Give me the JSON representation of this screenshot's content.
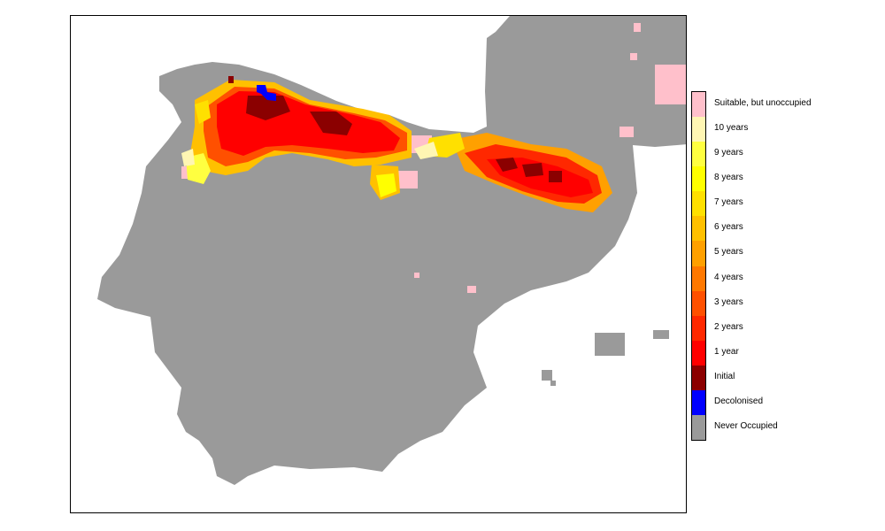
{
  "map": {
    "region": "Iberian Peninsula",
    "colors": {
      "land": "#9a9a9a",
      "sea": "#ffffff",
      "frame": "#000000"
    },
    "legend": [
      {
        "label": "Suitable, but unoccupied",
        "color": "#ffc0cb"
      },
      {
        "label": "10 years",
        "color": "#fff6b3"
      },
      {
        "label": "9 years",
        "color": "#ffff40"
      },
      {
        "label": "8 years",
        "color": "#ffff00"
      },
      {
        "label": "7 years",
        "color": "#ffe000"
      },
      {
        "label": "6 years",
        "color": "#ffc000"
      },
      {
        "label": "5 years",
        "color": "#ffa000"
      },
      {
        "label": "4 years",
        "color": "#ff7800"
      },
      {
        "label": "3 years",
        "color": "#ff5000"
      },
      {
        "label": "2 years",
        "color": "#ff2800"
      },
      {
        "label": "1 year",
        "color": "#ff0000"
      },
      {
        "label": "Initial",
        "color": "#8b0000"
      },
      {
        "label": "Decolonised",
        "color": "#0000ff"
      },
      {
        "label": "Never Occupied",
        "color": "#9a9a9a"
      }
    ]
  }
}
